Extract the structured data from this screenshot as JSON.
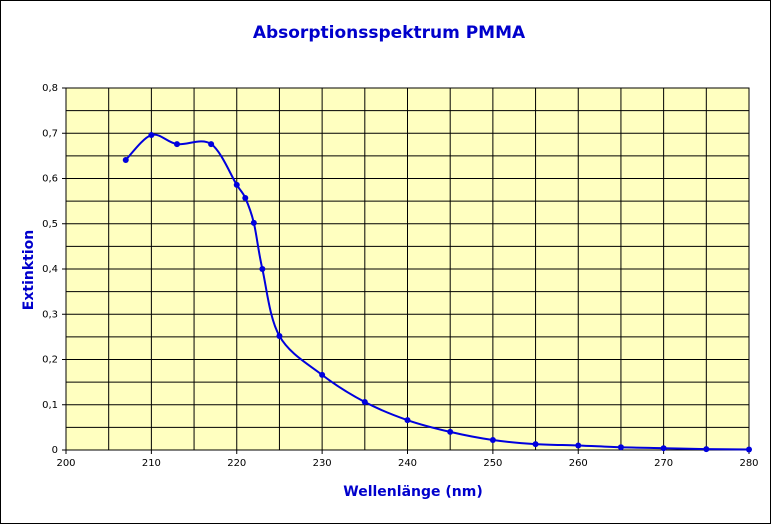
{
  "chart_data": {
    "type": "line",
    "title": "Absorptionsspektrum PMMA",
    "x_label": "Wellenlänge (nm)",
    "y_label": "Extinktion",
    "x": [
      207,
      210,
      213,
      217,
      220,
      221,
      222,
      223,
      225,
      230,
      235,
      240,
      245,
      250,
      255,
      260,
      265,
      270,
      275,
      280
    ],
    "series": [
      {
        "name": "PMMA",
        "color": "#0000dd",
        "values": [
          0.641,
          0.696,
          0.676,
          0.676,
          0.586,
          0.557,
          0.502,
          0.4,
          0.252,
          0.166,
          0.106,
          0.066,
          0.04,
          0.022,
          0.013,
          0.01,
          0.006,
          0.004,
          0.002,
          0.001
        ]
      }
    ],
    "xlim": [
      200,
      280
    ],
    "xticks": [
      200,
      210,
      220,
      230,
      240,
      250,
      260,
      270,
      280
    ],
    "x_minor_grid": [
      205,
      215,
      225,
      235,
      245,
      255,
      265,
      275
    ],
    "ylim": [
      0,
      0.8
    ],
    "yticks": [
      0,
      {
        "value": 0.1,
        "label": "0,1"
      },
      {
        "value": 0.2,
        "label": "0,2"
      },
      {
        "value": 0.3,
        "label": "0,3"
      },
      {
        "value": 0.4,
        "label": "0,4"
      },
      {
        "value": 0.5,
        "label": "0,5"
      },
      {
        "value": 0.6,
        "label": "0,6"
      },
      {
        "value": 0.7,
        "label": "0,7"
      },
      {
        "value": 0.8,
        "label": "0,8"
      }
    ],
    "y_minor_grid": [
      0.05,
      0.15,
      0.25,
      0.35,
      0.45,
      0.55,
      0.65,
      0.75
    ],
    "grid": true,
    "plot_background": "#ffffc0",
    "smooth": true
  }
}
